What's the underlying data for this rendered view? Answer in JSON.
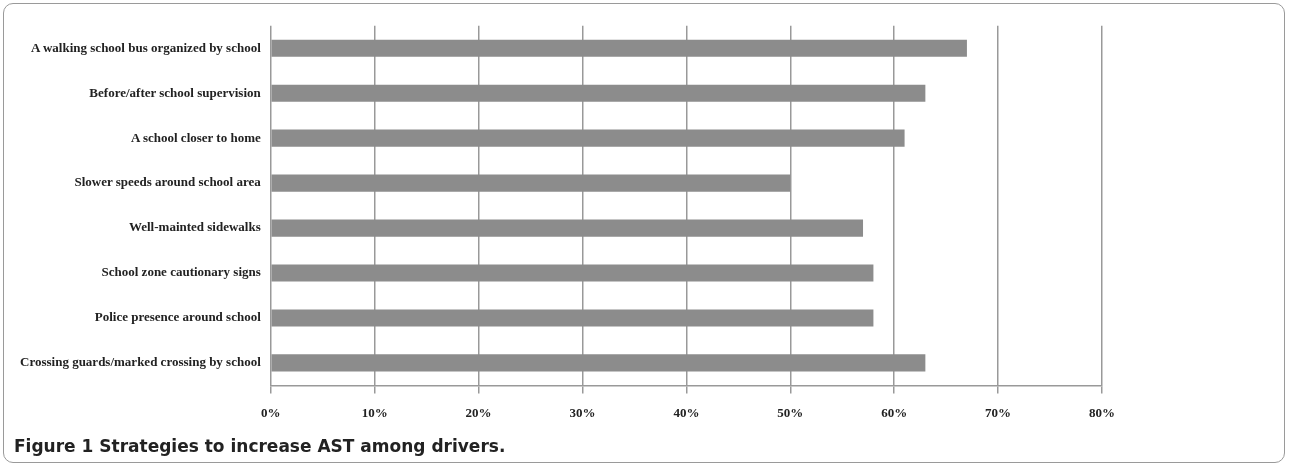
{
  "chart_data": {
    "type": "bar",
    "orientation": "horizontal",
    "title": "Figure 1 Strategies to increase AST among drivers.",
    "categories": [
      "A walking school bus organized by school",
      "Before/after school supervision",
      "A school closer to home",
      "Slower speeds around school area",
      "Well-mainted sidewalks",
      "School zone cautionary signs",
      "Police presence around school",
      "Crossing guards/marked crossing by school"
    ],
    "values": [
      67,
      63,
      61,
      50,
      57,
      58,
      58,
      63
    ],
    "color": "#8c8c8c",
    "xlim": [
      0,
      80
    ],
    "xticks": [
      {
        "value": 0,
        "label": "0%"
      },
      {
        "value": 10,
        "label": "10%"
      },
      {
        "value": 20,
        "label": "20%"
      },
      {
        "value": 30,
        "label": "30%"
      },
      {
        "value": 40,
        "label": "40%"
      },
      {
        "value": 50,
        "label": "50%"
      },
      {
        "value": 60,
        "label": "60%"
      },
      {
        "value": 70,
        "label": "70%"
      },
      {
        "value": 80,
        "label": "80%"
      }
    ],
    "grid": "x",
    "legend": false
  }
}
